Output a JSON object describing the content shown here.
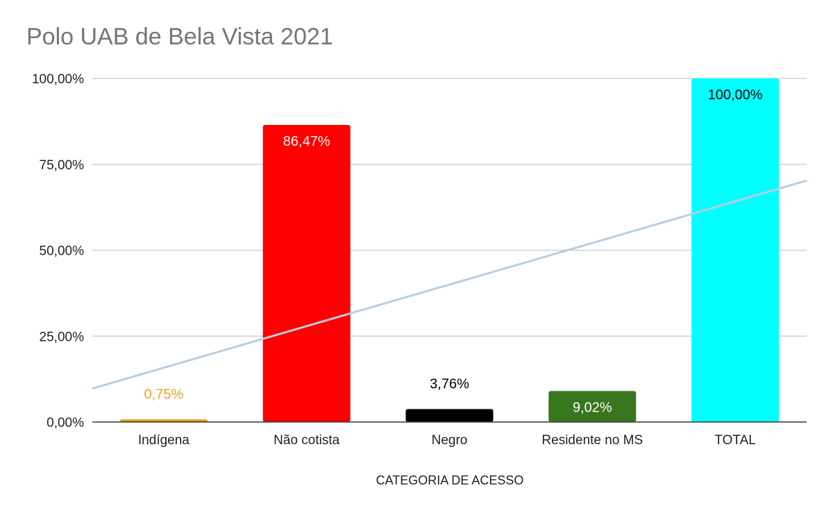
{
  "chart_data": {
    "type": "bar",
    "title": "Polo UAB de Bela Vista 2021",
    "xlabel": "CATEGORIA DE ACESSO",
    "ylabel": "",
    "categories": [
      "Indígena",
      "Não cotista",
      "Negro",
      "Residente no MS",
      "TOTAL"
    ],
    "values": [
      0.75,
      86.47,
      3.76,
      9.02,
      100.0
    ],
    "data_labels": [
      "0,75%",
      "86,47%",
      "3,76%",
      "9,02%",
      "100,00%"
    ],
    "bar_colors": [
      "#e69a1c",
      "#ff0000",
      "#000000",
      "#38761d",
      "#00ffff"
    ],
    "label_colors": [
      "#f4a21e",
      "#ffffff",
      "#000000",
      "#ffffff",
      "#000000"
    ],
    "label_inside": [
      false,
      true,
      false,
      true,
      true
    ],
    "ylim": [
      0,
      100
    ],
    "yticks": [
      0,
      25,
      50,
      75,
      100
    ],
    "ytick_labels": [
      "0,00%",
      "25,00%",
      "50,00%",
      "75,00%",
      "100,00%"
    ],
    "trendline": {
      "type": "linear",
      "color": "#b7cde3"
    },
    "grid": true,
    "legend": "none"
  }
}
